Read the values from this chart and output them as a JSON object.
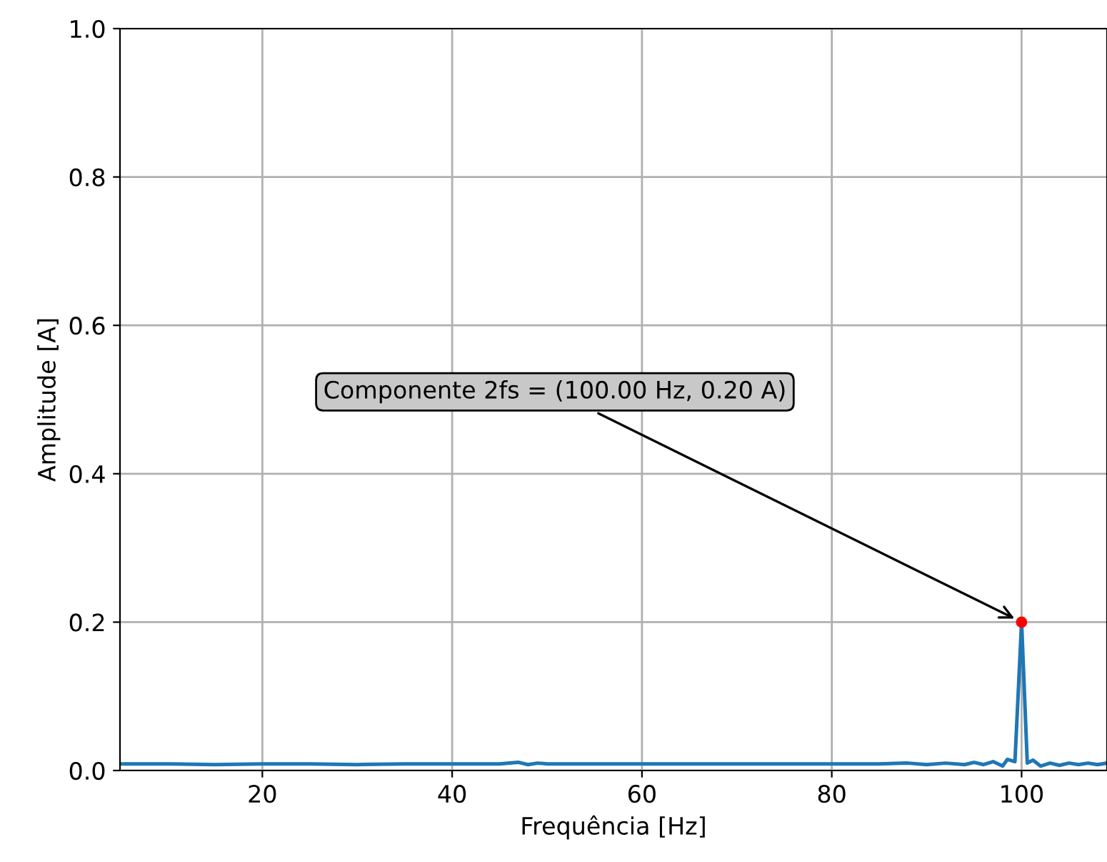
{
  "chart_data": {
    "type": "line",
    "xlabel": "Frequência [Hz]",
    "ylabel": "Amplitude [A]",
    "xlim": [
      5,
      109
    ],
    "ylim": [
      0,
      1.0
    ],
    "xticks": [
      20,
      40,
      60,
      80,
      100
    ],
    "yticks": [
      {
        "value": 0,
        "label": "0.0"
      },
      {
        "value": 0.2,
        "label": "0.2"
      },
      {
        "value": 0.4,
        "label": "0.4"
      },
      {
        "value": 0.6,
        "label": "0.6"
      },
      {
        "value": 0.8,
        "label": "0.8"
      },
      {
        "value": 1,
        "label": "1.0"
      }
    ],
    "grid": true,
    "series": [
      {
        "color": "#1f77b4",
        "x": [
          5,
          10,
          15,
          20,
          25,
          30,
          35,
          40,
          45,
          47,
          48,
          49,
          50,
          55,
          60,
          65,
          70,
          75,
          80,
          85,
          88,
          90,
          92,
          94,
          95,
          96,
          97,
          98,
          98.5,
          99.3,
          100,
          100.6,
          101.2,
          102,
          103,
          104,
          105,
          106,
          107,
          108,
          109
        ],
        "values": [
          0.009,
          0.009,
          0.008,
          0.009,
          0.009,
          0.008,
          0.009,
          0.009,
          0.009,
          0.011,
          0.008,
          0.01,
          0.009,
          0.009,
          0.009,
          0.009,
          0.009,
          0.009,
          0.009,
          0.009,
          0.01,
          0.008,
          0.01,
          0.008,
          0.011,
          0.008,
          0.012,
          0.006,
          0.015,
          0.012,
          0.2,
          0.01,
          0.014,
          0.006,
          0.01,
          0.007,
          0.01,
          0.008,
          0.01,
          0.008,
          0.01
        ]
      },
      {
        "type": "scatter",
        "color": "#ff0000",
        "x": [
          100
        ],
        "values": [
          0.2
        ]
      }
    ],
    "annotations": [
      {
        "text": "Componente 2fs = (100.00 Hz, 0.20 A)",
        "x": 100,
        "y": 0.2
      }
    ]
  }
}
